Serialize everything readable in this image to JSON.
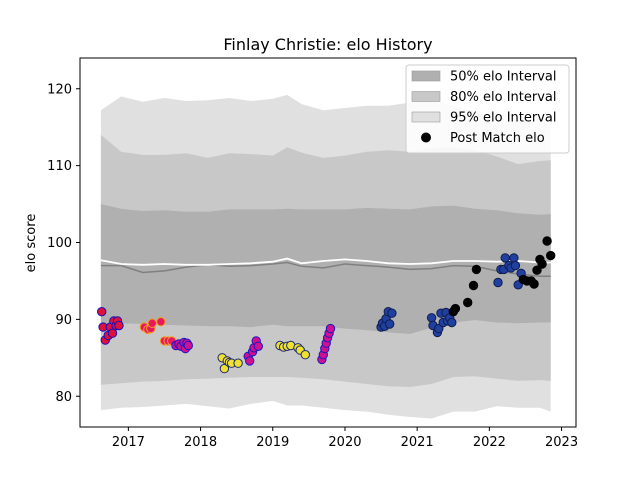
{
  "chart_data": {
    "type": "scatter",
    "title": "Finlay Christie: elo History",
    "xlabel": "",
    "ylabel": "elo score",
    "xlim": [
      2016.33,
      2023.2
    ],
    "ylim": [
      76,
      124
    ],
    "xticks": [
      {
        "value": 2017,
        "label": "2017"
      },
      {
        "value": 2018,
        "label": "2018"
      },
      {
        "value": 2019,
        "label": "2019"
      },
      {
        "value": 2020,
        "label": "2020"
      },
      {
        "value": 2021,
        "label": "2021"
      },
      {
        "value": 2022,
        "label": "2022"
      },
      {
        "value": 2023,
        "label": "2023"
      }
    ],
    "yticks": [
      80,
      90,
      100,
      110,
      120
    ],
    "grid": false,
    "legend": {
      "placement": "top-right",
      "entries": [
        {
          "label": "50% elo Interval",
          "color": "#b0b0b0",
          "kind": "patch"
        },
        {
          "label": "80% elo Interval",
          "color": "#c8c8c8",
          "kind": "patch"
        },
        {
          "label": "95% elo Interval",
          "color": "#e0e0e0",
          "kind": "patch"
        },
        {
          "label": "Post Match elo",
          "color": "#000000",
          "kind": "marker"
        }
      ]
    },
    "bands": {
      "x": [
        2016.62,
        2016.9,
        2017.2,
        2017.5,
        2017.8,
        2018.1,
        2018.4,
        2018.7,
        2019.0,
        2019.2,
        2019.4,
        2019.7,
        2020.0,
        2020.3,
        2020.6,
        2020.9,
        2021.2,
        2021.5,
        2021.8,
        2022.1,
        2022.4,
        2022.7,
        2022.85
      ],
      "ci95_upper": [
        117.2,
        119.0,
        118.3,
        118.8,
        118.4,
        118.5,
        118.8,
        118.4,
        118.7,
        119.2,
        118.0,
        117.2,
        117.5,
        117.8,
        117.8,
        118.2,
        118.5,
        117.8,
        117.0,
        115.8,
        116.0,
        116.0,
        116.2
      ],
      "ci95_lower": [
        78.2,
        78.5,
        78.6,
        78.8,
        79.0,
        78.7,
        78.4,
        79.0,
        79.4,
        78.8,
        78.8,
        78.5,
        78.2,
        78.0,
        77.6,
        77.3,
        77.1,
        78.0,
        78.0,
        78.7,
        78.5,
        78.5,
        78.0
      ],
      "ci80_upper": [
        114.0,
        111.8,
        111.4,
        111.4,
        111.6,
        111.0,
        111.6,
        111.5,
        111.3,
        112.4,
        111.7,
        111.0,
        111.3,
        111.8,
        112.0,
        111.8,
        112.3,
        112.4,
        112.0,
        111.2,
        110.2,
        110.6,
        110.7
      ],
      "ci80_lower": [
        81.5,
        81.7,
        81.9,
        82.0,
        82.2,
        82.3,
        82.4,
        82.5,
        82.5,
        82.5,
        82.4,
        82.2,
        81.9,
        81.6,
        81.3,
        81.2,
        81.6,
        82.5,
        82.6,
        82.3,
        82.0,
        82.1,
        82.0
      ],
      "ci50_upper": [
        105.0,
        104.4,
        104.1,
        104.2,
        104.0,
        104.0,
        104.3,
        104.3,
        104.3,
        104.4,
        104.3,
        104.3,
        104.3,
        104.5,
        104.4,
        104.3,
        104.7,
        104.8,
        104.4,
        104.2,
        103.8,
        103.6,
        103.7
      ],
      "ci50_lower": [
        89.5,
        89.5,
        89.4,
        89.3,
        89.2,
        89.1,
        89.1,
        89.0,
        89.3,
        89.1,
        89.1,
        89.1,
        88.8,
        88.6,
        88.3,
        88.1,
        88.9,
        89.6,
        89.9,
        89.6,
        89.5,
        89.6,
        89.6
      ],
      "mean": [
        97.0,
        97.0,
        96.1,
        96.3,
        96.8,
        97.1,
        96.9,
        97.0,
        97.2,
        97.4,
        96.9,
        96.7,
        97.2,
        97.0,
        96.8,
        96.5,
        96.6,
        97.0,
        96.9,
        96.3,
        95.9,
        95.6,
        95.6
      ],
      "median": [
        97.7,
        97.2,
        97.1,
        97.2,
        97.1,
        97.1,
        97.2,
        97.3,
        97.5,
        97.9,
        97.3,
        97.6,
        97.8,
        97.6,
        97.3,
        97.2,
        97.3,
        97.6,
        97.6,
        97.5,
        97.6,
        97.4,
        97.4
      ]
    },
    "series": [
      {
        "color_face": "#e0103a",
        "color_edge": "#1010c0",
        "points": [
          [
            2016.63,
            91.0
          ],
          [
            2016.65,
            89.0
          ],
          [
            2016.68,
            87.3
          ],
          [
            2016.72,
            87.9
          ],
          [
            2016.75,
            89.0
          ],
          [
            2016.78,
            88.2
          ],
          [
            2016.8,
            89.8
          ],
          [
            2016.83,
            89.2
          ],
          [
            2016.85,
            89.8
          ],
          [
            2016.87,
            89.2
          ]
        ]
      },
      {
        "color_face": "#e81860",
        "color_edge": "#f0a020",
        "points": [
          [
            2017.22,
            89.0
          ],
          [
            2017.27,
            88.7
          ],
          [
            2017.31,
            88.8
          ],
          [
            2017.33,
            89.5
          ],
          [
            2017.45,
            89.7
          ],
          [
            2017.5,
            87.2
          ],
          [
            2017.55,
            87.2
          ],
          [
            2017.6,
            87.2
          ]
        ]
      },
      {
        "color_face": "#d01090",
        "color_edge": "#1818c0",
        "points": [
          [
            2017.66,
            86.6
          ],
          [
            2017.7,
            86.8
          ],
          [
            2017.73,
            86.5
          ],
          [
            2017.77,
            87.0
          ],
          [
            2017.79,
            86.2
          ],
          [
            2017.81,
            86.9
          ],
          [
            2017.83,
            86.6
          ]
        ]
      },
      {
        "color_face": "#f0e030",
        "color_edge": "#1a2a70",
        "points": [
          [
            2018.3,
            85.0
          ],
          [
            2018.33,
            83.6
          ],
          [
            2018.37,
            84.6
          ],
          [
            2018.4,
            84.4
          ],
          [
            2018.43,
            84.3
          ],
          [
            2018.52,
            84.3
          ]
        ]
      },
      {
        "color_face": "#d01090",
        "color_edge": "#1818c0",
        "points": [
          [
            2018.66,
            85.2
          ],
          [
            2018.68,
            84.6
          ],
          [
            2018.72,
            85.8
          ],
          [
            2018.74,
            86.3
          ],
          [
            2018.77,
            87.2
          ],
          [
            2018.8,
            86.5
          ]
        ]
      },
      {
        "color_face": "#f0e030",
        "color_edge": "#1a2a70",
        "points": [
          [
            2019.1,
            86.6
          ],
          [
            2019.15,
            86.4
          ],
          [
            2019.2,
            86.5
          ],
          [
            2019.25,
            86.6
          ],
          [
            2019.35,
            86.3
          ],
          [
            2019.38,
            86.0
          ],
          [
            2019.45,
            85.4
          ]
        ]
      },
      {
        "color_face": "#d01090",
        "color_edge": "#1818c0",
        "points": [
          [
            2019.68,
            84.8
          ],
          [
            2019.7,
            85.4
          ],
          [
            2019.72,
            86.2
          ],
          [
            2019.74,
            86.9
          ],
          [
            2019.76,
            87.6
          ],
          [
            2019.78,
            88.2
          ],
          [
            2019.8,
            88.8
          ]
        ]
      },
      {
        "color_face": "#2040a0",
        "color_edge": "#101c50",
        "points": [
          [
            2020.5,
            89.0
          ],
          [
            2020.52,
            89.5
          ],
          [
            2020.55,
            89.1
          ],
          [
            2020.57,
            90.1
          ],
          [
            2020.6,
            91.0
          ],
          [
            2020.62,
            89.4
          ],
          [
            2020.65,
            90.8
          ]
        ]
      },
      {
        "color_face": "#2040a0",
        "color_edge": "#101c50",
        "points": [
          [
            2021.2,
            90.2
          ],
          [
            2021.22,
            89.2
          ],
          [
            2021.28,
            88.3
          ],
          [
            2021.3,
            88.8
          ],
          [
            2021.33,
            90.8
          ],
          [
            2021.36,
            89.6
          ],
          [
            2021.4,
            90.9
          ],
          [
            2021.42,
            89.8
          ],
          [
            2021.45,
            90.2
          ],
          [
            2021.48,
            89.6
          ]
        ]
      },
      {
        "color_face": "#000000",
        "color_edge": "#000000",
        "points": [
          [
            2021.5,
            91.0
          ],
          [
            2021.53,
            91.4
          ],
          [
            2021.7,
            92.2
          ],
          [
            2021.78,
            94.4
          ],
          [
            2021.82,
            96.5
          ]
        ]
      },
      {
        "color_face": "#2040a0",
        "color_edge": "#101c50",
        "points": [
          [
            2022.12,
            94.8
          ],
          [
            2022.16,
            96.5
          ],
          [
            2022.2,
            96.5
          ],
          [
            2022.22,
            98.0
          ],
          [
            2022.27,
            97.0
          ],
          [
            2022.3,
            96.7
          ],
          [
            2022.34,
            98.0
          ],
          [
            2022.36,
            97.0
          ],
          [
            2022.4,
            94.5
          ],
          [
            2022.44,
            96.0
          ]
        ]
      },
      {
        "color_face": "#000000",
        "color_edge": "#000000",
        "points": [
          [
            2022.47,
            95.2
          ],
          [
            2022.52,
            95.0
          ],
          [
            2022.58,
            95.0
          ],
          [
            2022.62,
            94.6
          ],
          [
            2022.66,
            96.4
          ],
          [
            2022.7,
            97.8
          ],
          [
            2022.73,
            97.2
          ],
          [
            2022.8,
            100.2
          ],
          [
            2022.85,
            98.3
          ]
        ]
      }
    ]
  }
}
